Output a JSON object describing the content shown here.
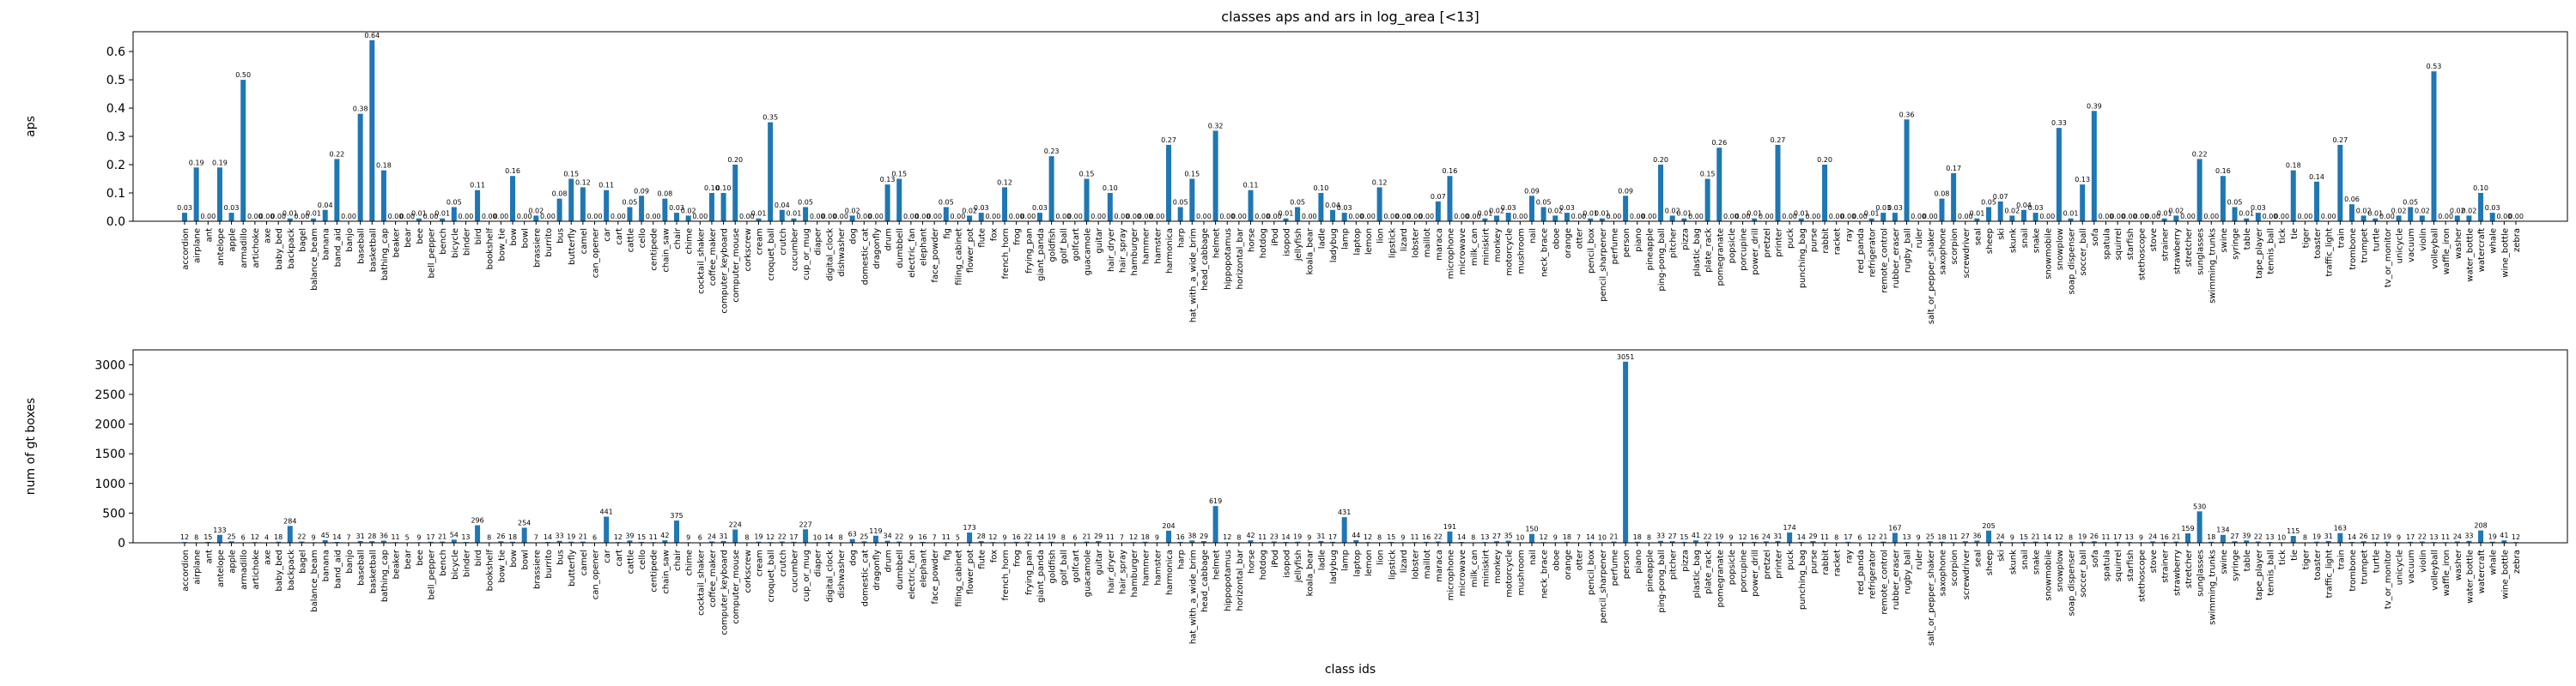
{
  "chart_data": [
    {
      "type": "bar",
      "title": "classes aps and ars in log_area [<13]",
      "ylabel": "aps",
      "color": "#1f77b4",
      "categories": [
        "accordion",
        "airplane",
        "ant",
        "antelope",
        "apple",
        "armadillo",
        "artichoke",
        "axe",
        "baby_bed",
        "backpack",
        "bagel",
        "balance_beam",
        "banana",
        "band_aid",
        "banjo",
        "baseball",
        "basketball",
        "bathing_cap",
        "beaker",
        "bear",
        "bee",
        "bell_pepper",
        "bench",
        "bicycle",
        "binder",
        "bird",
        "bookshelf",
        "bow_tie",
        "bow",
        "bowl",
        "brassiere",
        "burrito",
        "bus",
        "butterfly",
        "camel",
        "can_opener",
        "car",
        "cart",
        "cattle",
        "cello",
        "centipede",
        "chain_saw",
        "chair",
        "chime",
        "cocktail_shaker",
        "coffee_maker",
        "computer_keyboard",
        "computer_mouse",
        "corkscrew",
        "cream",
        "croquet_ball",
        "crutch",
        "cucumber",
        "cup_or_mug",
        "diaper",
        "digital_clock",
        "dishwasher",
        "dog",
        "domestic_cat",
        "dragonfly",
        "drum",
        "dumbbell",
        "electric_fan",
        "elephant",
        "face_powder",
        "fig",
        "filing_cabinet",
        "flower_pot",
        "flute",
        "fox",
        "french_horn",
        "frog",
        "frying_pan",
        "giant_panda",
        "goldfish",
        "golf_ball",
        "golfcart",
        "guacamole",
        "guitar",
        "hair_dryer",
        "hair_spray",
        "hamburger",
        "hammer",
        "hamster",
        "harmonica",
        "harp",
        "hat_with_a_wide_brim",
        "head_cabbage",
        "helmet",
        "hippopotamus",
        "horizontal_bar",
        "horse",
        "hotdog",
        "iPod",
        "isopod",
        "jellyfish",
        "koala_bear",
        "ladle",
        "ladybug",
        "lamp",
        "laptop",
        "lemon",
        "lion",
        "lipstick",
        "lizard",
        "lobster",
        "maillot",
        "maraca",
        "microphone",
        "microwave",
        "milk_can",
        "miniskirt",
        "monkey",
        "motorcycle",
        "mushroom",
        "nail",
        "neck_brace",
        "oboe",
        "orange",
        "otter",
        "pencil_box",
        "pencil_sharpener",
        "perfume",
        "person",
        "piano",
        "pineapple",
        "ping-pong_ball",
        "pitcher",
        "pizza",
        "plastic_bag",
        "plate_rack",
        "pomegranate",
        "popsicle",
        "porcupine",
        "power_drill",
        "pretzel",
        "printer",
        "puck",
        "punching_bag",
        "purse",
        "rabbit",
        "racket",
        "ray",
        "red_panda",
        "refrigerator",
        "remote_control",
        "rubber_eraser",
        "rugby_ball",
        "ruler",
        "salt_or_pepper_shaker",
        "saxophone",
        "scorpion",
        "screwdriver",
        "seal",
        "sheep",
        "ski",
        "skunk",
        "snail",
        "snake",
        "snowmobile",
        "snowplow",
        "soap_dispenser",
        "soccer_ball",
        "sofa",
        "spatula",
        "squirrel",
        "starfish",
        "stethoscope",
        "stove",
        "strainer",
        "strawberry",
        "stretcher",
        "sunglasses",
        "swimming_trunks",
        "swine",
        "syringe",
        "table",
        "tape_player",
        "tennis_ball",
        "tick",
        "tie",
        "tiger",
        "toaster",
        "traffic_light",
        "train",
        "trombone",
        "trumpet",
        "turtle",
        "tv_or_monitor",
        "unicycle",
        "vacuum",
        "violin",
        "volleyball",
        "waffle_iron",
        "washer",
        "water_bottle",
        "watercraft",
        "whale",
        "wine_bottle",
        "zebra"
      ],
      "values": [
        0.03,
        0.19,
        0,
        0.19,
        0.03,
        0.5,
        0,
        0,
        0,
        0.01,
        0,
        0.01,
        0.04,
        0.22,
        0,
        0.38,
        0.64,
        0.18,
        0,
        0,
        0.01,
        0,
        0.01,
        0.05,
        0,
        0.11,
        0,
        0,
        0.16,
        0,
        0.02,
        0,
        0.08,
        0.15,
        0.12,
        0,
        0.11,
        0,
        0.05,
        0.09,
        0,
        0.08,
        0.03,
        0.02,
        0,
        0.1,
        0.1,
        0.2,
        0,
        0.01,
        0.35,
        0.04,
        0.01,
        0.05,
        0,
        0,
        0,
        0.02,
        0,
        0,
        0.13,
        0.15,
        0,
        0,
        0,
        0.05,
        0,
        0.02,
        0.03,
        0,
        0.12,
        0,
        0,
        0.03,
        0.23,
        0,
        0,
        0.15,
        0,
        0.1,
        0,
        0,
        0,
        0,
        0.27,
        0.05,
        0.15,
        0,
        0.32,
        0,
        0,
        0.11,
        0,
        0,
        0.01,
        0.05,
        0,
        0.1,
        0.04,
        0.03,
        0,
        0,
        0.12,
        0,
        0,
        0,
        0,
        0.07,
        0.16,
        0,
        0,
        0.01,
        0.02,
        0.03,
        0,
        0.09,
        0.05,
        0.02,
        0.03,
        0,
        0.01,
        0.01,
        0,
        0.09,
        0,
        0,
        0.2,
        0.02,
        0.01,
        0,
        0.15,
        0.26,
        0,
        0,
        0.01,
        0,
        0.27,
        0,
        0.01,
        0,
        0.2,
        0,
        0,
        0,
        0.01,
        0.03,
        0.03,
        0.36,
        0,
        0,
        0.08,
        0.17,
        0,
        0.01,
        0.05,
        0.07,
        0.02,
        0.04,
        0.03,
        0,
        0.33,
        0.01,
        0.13,
        0.39,
        0,
        0,
        0,
        0,
        0,
        0.01,
        0.02,
        0,
        0.22,
        0,
        0.16,
        0.05,
        0.01,
        0.03,
        0,
        0,
        0.18,
        0,
        0.14,
        0,
        0.27,
        0.06,
        0.02,
        0.01,
        0,
        0.02,
        0.05,
        0.02,
        0.53,
        0,
        0.02,
        0.02,
        0.1,
        0.03,
        0,
        0
      ],
      "value_labels": [
        "0.03",
        "0.19",
        "0.00",
        "0.19",
        "0.03",
        "0.50",
        "0.00",
        "0.00",
        "0.00",
        "0.01",
        "0.00",
        "0.01",
        "0.04",
        "0.22",
        "0.00",
        "0.38",
        "0.64",
        "0.18",
        "0.00",
        "0.00",
        "0.01",
        "0.00",
        "0.01",
        "0.05",
        "0.00",
        "0.11",
        "0.00",
        "0.00",
        "0.16",
        "0.00",
        "0.02",
        "0.00",
        "0.08",
        "0.15",
        "0.12",
        "0.00",
        "0.11",
        "0.00",
        "0.05",
        "0.09",
        "0.00",
        "0.08",
        "0.03",
        "0.02",
        "0.00",
        "0.10",
        "0.10",
        "0.20",
        "0.00",
        "0.01",
        "0.35",
        "0.04",
        "0.01",
        "0.05",
        "0.00",
        "0.00",
        "0.00",
        "0.02",
        "0.00",
        "0.00",
        "0.13",
        "0.15",
        "0.00",
        "0.00",
        "0.00",
        "0.05",
        "0.00",
        "0.02",
        "0.03",
        "0.00",
        "0.12",
        "0.00",
        "0.00",
        "0.03",
        "0.23",
        "0.00",
        "0.00",
        "0.15",
        "0.00",
        "0.10",
        "0.00",
        "0.00",
        "0.00",
        "0.00",
        "0.27",
        "0.05",
        "0.15",
        "0.00",
        "0.32",
        "0.00",
        "0.00",
        "0.11",
        "0.00",
        "0.00",
        "0.01",
        "0.05",
        "0.00",
        "0.10",
        "0.04",
        "0.03",
        "0.00",
        "0.00",
        "0.12",
        "0.00",
        "0.00",
        "0.00",
        "0.00",
        "0.07",
        "0.16",
        "0.00",
        "0.00",
        "0.01",
        "0.02",
        "0.03",
        "0.00",
        "0.09",
        "0.05",
        "0.02",
        "0.03",
        "0.00",
        "0.01",
        "0.01",
        "0.00",
        "0.09",
        "0.00",
        "0.00",
        "0.20",
        "0.02",
        "0.01",
        "0.00",
        "0.15",
        "0.26",
        "0.00",
        "0.00",
        "0.01",
        "0.00",
        "0.27",
        "0.00",
        "0.01",
        "0.00",
        "0.20",
        "0.00",
        "0.00",
        "0.00",
        "0.01",
        "0.03",
        "0.03",
        "0.36",
        "0.00",
        "0.00",
        "0.08",
        "0.17",
        "0.00",
        "0.01",
        "0.05",
        "0.07",
        "0.02",
        "0.04",
        "0.03",
        "0.00",
        "0.33",
        "0.01",
        "0.13",
        "0.39",
        "0.00",
        "0.00",
        "0.00",
        "0.00",
        "0.00",
        "0.01",
        "0.02",
        "0.00",
        "0.22",
        "0.00",
        "0.16",
        "0.05",
        "0.01",
        "0.03",
        "0.00",
        "0.00",
        "0.18",
        "0.00",
        "0.14",
        "0.00",
        "0.27",
        "0.06",
        "0.02",
        "0.01",
        "0.00",
        "0.02",
        "0.05",
        "0.02",
        "0.53",
        "0.00",
        "0.02",
        "0.02",
        "0.10",
        "0.03",
        "0.00",
        "0.00"
      ],
      "ylim": [
        0,
        0.67
      ],
      "yticks": [
        {
          "value": 0,
          "label": "0.0"
        },
        0.1,
        0.2,
        0.3,
        0.4,
        0.5,
        0.6
      ]
    },
    {
      "type": "bar",
      "ylabel": "num of gt boxes",
      "xlabel": "class ids",
      "color": "#1f77b4",
      "categories": [
        "accordion",
        "airplane",
        "ant",
        "antelope",
        "apple",
        "armadillo",
        "artichoke",
        "axe",
        "baby_bed",
        "backpack",
        "bagel",
        "balance_beam",
        "banana",
        "band_aid",
        "banjo",
        "baseball",
        "basketball",
        "bathing_cap",
        "beaker",
        "bear",
        "bee",
        "bell_pepper",
        "bench",
        "bicycle",
        "binder",
        "bird",
        "bookshelf",
        "bow_tie",
        "bow",
        "bowl",
        "brassiere",
        "burrito",
        "bus",
        "butterfly",
        "camel",
        "can_opener",
        "car",
        "cart",
        "cattle",
        "cello",
        "centipede",
        "chain_saw",
        "chair",
        "chime",
        "cocktail_shaker",
        "coffee_maker",
        "computer_keyboard",
        "computer_mouse",
        "corkscrew",
        "cream",
        "croquet_ball",
        "crutch",
        "cucumber",
        "cup_or_mug",
        "diaper",
        "digital_clock",
        "dishwasher",
        "dog",
        "domestic_cat",
        "dragonfly",
        "drum",
        "dumbbell",
        "electric_fan",
        "elephant",
        "face_powder",
        "fig",
        "filing_cabinet",
        "flower_pot",
        "flute",
        "fox",
        "french_horn",
        "frog",
        "frying_pan",
        "giant_panda",
        "goldfish",
        "golf_ball",
        "golfcart",
        "guacamole",
        "guitar",
        "hair_dryer",
        "hair_spray",
        "hamburger",
        "hammer",
        "hamster",
        "harmonica",
        "harp",
        "hat_with_a_wide_brim",
        "head_cabbage",
        "helmet",
        "hippopotamus",
        "horizontal_bar",
        "horse",
        "hotdog",
        "iPod",
        "isopod",
        "jellyfish",
        "koala_bear",
        "ladle",
        "ladybug",
        "lamp",
        "laptop",
        "lemon",
        "lion",
        "lipstick",
        "lizard",
        "lobster",
        "maillot",
        "maraca",
        "microphone",
        "microwave",
        "milk_can",
        "miniskirt",
        "monkey",
        "motorcycle",
        "mushroom",
        "nail",
        "neck_brace",
        "oboe",
        "orange",
        "otter",
        "pencil_box",
        "pencil_sharpener",
        "perfume",
        "person",
        "piano",
        "pineapple",
        "ping-pong_ball",
        "pitcher",
        "pizza",
        "plastic_bag",
        "plate_rack",
        "pomegranate",
        "popsicle",
        "porcupine",
        "power_drill",
        "pretzel",
        "printer",
        "puck",
        "punching_bag",
        "purse",
        "rabbit",
        "racket",
        "ray",
        "red_panda",
        "refrigerator",
        "remote_control",
        "rubber_eraser",
        "rugby_ball",
        "ruler",
        "salt_or_pepper_shaker",
        "saxophone",
        "scorpion",
        "screwdriver",
        "seal",
        "sheep",
        "ski",
        "skunk",
        "snail",
        "snake",
        "snowmobile",
        "snowplow",
        "soap_dispenser",
        "soccer_ball",
        "sofa",
        "spatula",
        "squirrel",
        "starfish",
        "stethoscope",
        "stove",
        "strainer",
        "strawberry",
        "stretcher",
        "sunglasses",
        "swimming_trunks",
        "swine",
        "syringe",
        "table",
        "tape_player",
        "tennis_ball",
        "tick",
        "tie",
        "tiger",
        "toaster",
        "traffic_light",
        "train",
        "trombone",
        "trumpet",
        "turtle",
        "tv_or_monitor",
        "unicycle",
        "vacuum",
        "violin",
        "volleyball",
        "waffle_iron",
        "washer",
        "water_bottle",
        "watercraft",
        "whale",
        "wine_bottle",
        "zebra"
      ],
      "values": [
        12,
        8,
        15,
        133,
        25,
        6,
        12,
        4,
        18,
        284,
        22,
        9,
        45,
        14,
        7,
        31,
        28,
        36,
        11,
        5,
        9,
        17,
        21,
        54,
        13,
        296,
        8,
        26,
        18,
        254,
        7,
        14,
        33,
        19,
        21,
        6,
        441,
        12,
        39,
        15,
        11,
        42,
        375,
        9,
        6,
        24,
        31,
        224,
        8,
        19,
        12,
        22,
        17,
        227,
        10,
        14,
        8,
        63,
        25,
        119,
        34,
        22,
        9,
        16,
        7,
        11,
        5,
        173,
        28,
        12,
        9,
        16,
        22,
        14,
        19,
        8,
        6,
        21,
        29,
        11,
        7,
        12,
        18,
        9,
        204,
        16,
        38,
        29,
        619,
        12,
        8,
        42,
        11,
        23,
        14,
        19,
        9,
        31,
        17,
        431,
        44,
        12,
        8,
        15,
        9,
        11,
        16,
        22,
        191,
        14,
        8,
        13,
        27,
        35,
        10,
        150,
        12,
        9,
        18,
        7,
        14,
        10,
        21,
        3051,
        18,
        8,
        33,
        27,
        15,
        41,
        22,
        19,
        9,
        12,
        16,
        24,
        31,
        174,
        14,
        29,
        11,
        8,
        17,
        6,
        12,
        21,
        167,
        13,
        9,
        25,
        18,
        11,
        27,
        36,
        205,
        24,
        9,
        15,
        21,
        14,
        12,
        8,
        19,
        26,
        11,
        17,
        13,
        9,
        24,
        16,
        21,
        159,
        530,
        18,
        134,
        27,
        39,
        22,
        13,
        10,
        115,
        8,
        19,
        31,
        163,
        14,
        26,
        12,
        19,
        9,
        17,
        22,
        13,
        11,
        24,
        33,
        208,
        19,
        41,
        12
      ],
      "ylim": [
        0,
        3250
      ],
      "yticks": [
        0,
        500,
        1000,
        1500,
        2000,
        2500,
        3000
      ]
    }
  ]
}
